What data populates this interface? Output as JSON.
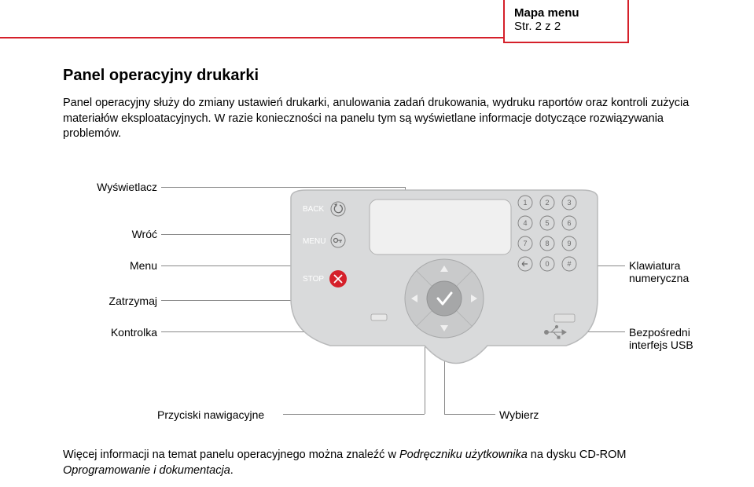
{
  "header": {
    "title": "Mapa menu",
    "subtitle": "Str. 2 z 2"
  },
  "section": {
    "title": "Panel operacyjny drukarki",
    "paragraph": "Panel operacyjny służy do zmiany ustawień drukarki, anulowania zadań drukowania, wydruku raportów oraz kontroli zużycia materiałów eksploatacyjnych. W razie konieczności na panelu tym są wyświetlane informacje dotyczące rozwiązywania problemów."
  },
  "callouts": {
    "display": "Wyświetlacz",
    "back": "Wróć",
    "menu": "Menu",
    "stop": "Zatrzymaj",
    "light": "Kontrolka",
    "keypad": "Klawiatura numeryczna",
    "usb": "Bezpośredni interfejs USB",
    "nav": "Przyciski nawigacyjne",
    "select": "Wybierz"
  },
  "panel": {
    "back_label": "BACK",
    "menu_label": "MENU",
    "stop_label": "STOP",
    "keys": [
      "1",
      "2",
      "3",
      "4",
      "5",
      "6",
      "7",
      "8",
      "9",
      "",
      "0",
      "#"
    ],
    "colors": {
      "panel_fill": "#d9dadb",
      "panel_stroke": "#b8b9ba",
      "screen_fill": "#f0f0f0",
      "btn_stroke": "#808080",
      "stop_fill": "#d5202a",
      "white_text": "#ffffff",
      "key_text": "#6a6a6a",
      "nav_disc": "#c9cacb",
      "nav_center": "#a6a7a8"
    }
  },
  "footer": {
    "pre": "Więcej informacji na temat panelu operacyjnego można znaleźć w ",
    "italic": "Podręczniku użytkownika",
    "post": " na dysku CD-ROM ",
    "italic2": "Oprogramowanie i dokumentacja",
    "end": "."
  }
}
